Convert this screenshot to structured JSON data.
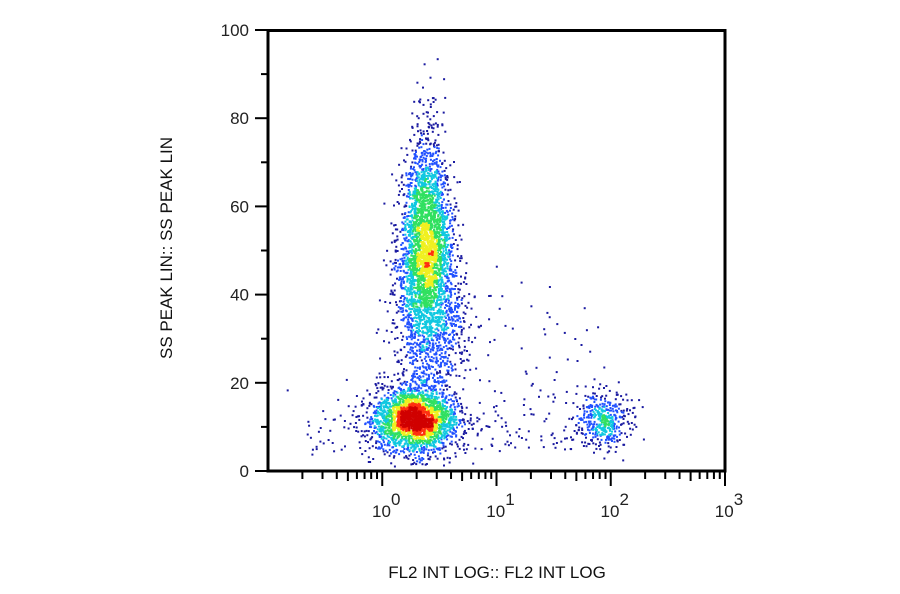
{
  "chart_data": {
    "type": "scatter",
    "subtype": "density-dot-plot",
    "xlabel": "FL2 INT LOG:: FL2 INT LOG",
    "ylabel": "SS PEAK LIN:: SS PEAK LIN",
    "xscale": "log",
    "xlim": [
      0.1,
      1000
    ],
    "ylim": [
      0,
      100
    ],
    "y_ticks": [
      "0",
      "20",
      "40",
      "60",
      "80",
      "100"
    ],
    "y_tick_values": [
      0,
      20,
      40,
      60,
      80,
      100
    ],
    "x_ticks": [
      {
        "base": "10",
        "exp": "0",
        "value": 1
      },
      {
        "base": "10",
        "exp": "1",
        "value": 10
      },
      {
        "base": "10",
        "exp": "2",
        "value": 100
      },
      {
        "base": "10",
        "exp": "3",
        "value": 1000
      }
    ],
    "grid": false,
    "colormap": [
      "#1a1aa0",
      "#2050ff",
      "#10c8e0",
      "#30e060",
      "#f0f020",
      "#ff3010",
      "#d00000"
    ],
    "populations": [
      {
        "name": "low-SS cluster",
        "x_center": 1.9,
        "log_x_sd": 0.17,
        "y_center": 12,
        "y_sd": 3.5,
        "count": 2600
      },
      {
        "name": "high-SS elongated cluster",
        "x_center": 2.4,
        "log_x_sd": 0.12,
        "y_center": 48,
        "y_sd": 13,
        "count": 3600
      },
      {
        "name": "FL2-positive cluster",
        "x_center": 85,
        "log_x_sd": 0.12,
        "y_center": 12,
        "y_sd": 3,
        "count": 420
      }
    ]
  }
}
